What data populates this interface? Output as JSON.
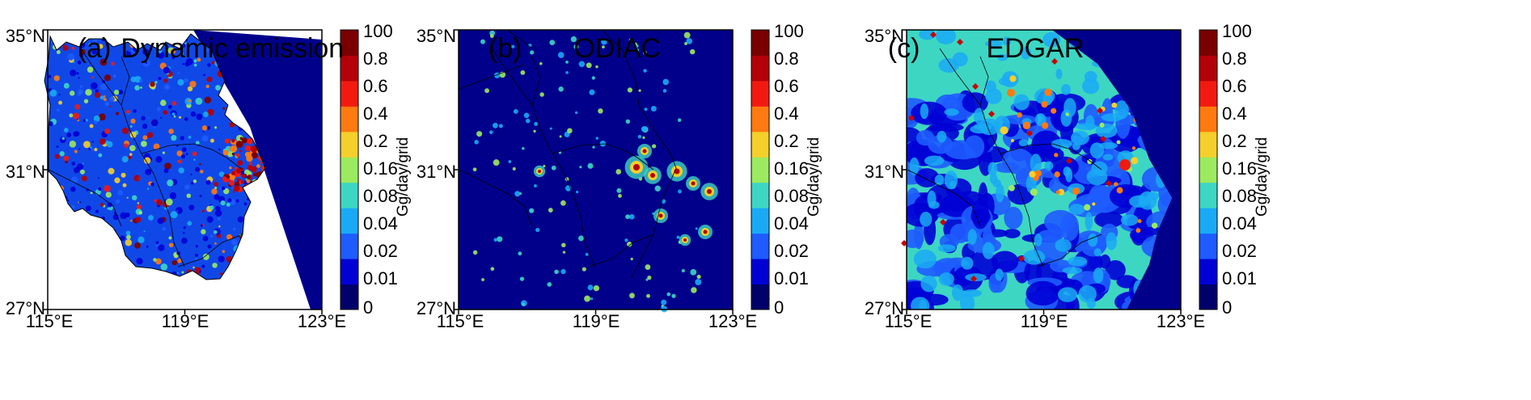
{
  "colors": {
    "ocean": "#00008B",
    "boundary": "#000000",
    "frame": "#000000",
    "colormap": [
      "#00006B",
      "#0000D5",
      "#1E5CFF",
      "#1AAAF5",
      "#3DD6C3",
      "#9BEA5F",
      "#F5CF2B",
      "#FF7A10",
      "#F21A10",
      "#B40008",
      "#7A0000"
    ]
  },
  "panels": [
    {
      "label": "(a)",
      "title": "Dynamic emission",
      "pattern": "dynamic",
      "y_ticks": [
        "35°N",
        "31°N",
        "27°N"
      ],
      "x_ticks": [
        "115°E",
        "119°E",
        "123°E"
      ],
      "colorbar": {
        "ticks": [
          "100",
          "0.8",
          "0.6",
          "0.4",
          "0.2",
          "0.16",
          "0.08",
          "0.04",
          "0.02",
          "0.01",
          "0"
        ],
        "label": "Gg/day/grid"
      }
    },
    {
      "label": "(b)",
      "title": "ODIAC",
      "pattern": "odiac",
      "y_ticks": [
        "35°N",
        "31°N",
        "27°N"
      ],
      "x_ticks": [
        "115°E",
        "119°E",
        "123°E"
      ],
      "colorbar": {
        "ticks": [
          "100",
          "0.8",
          "0.6",
          "0.4",
          "0.2",
          "0.16",
          "0.08",
          "0.04",
          "0.02",
          "0.01",
          "0"
        ],
        "label": "Gg/day/grid"
      }
    },
    {
      "label": "(c)",
      "title": "EDGAR",
      "pattern": "edgar",
      "y_ticks": [
        "35°N",
        "31°N",
        "27°N"
      ],
      "x_ticks": [
        "115°E",
        "119°E",
        "123°E"
      ],
      "colorbar": {
        "ticks": [
          "100",
          "0.8",
          "0.6",
          "0.4",
          "0.2",
          "0.16",
          "0.08",
          "0.04",
          "0.02",
          "0.01",
          "0"
        ],
        "label": "Gg/day/grid"
      }
    }
  ]
}
